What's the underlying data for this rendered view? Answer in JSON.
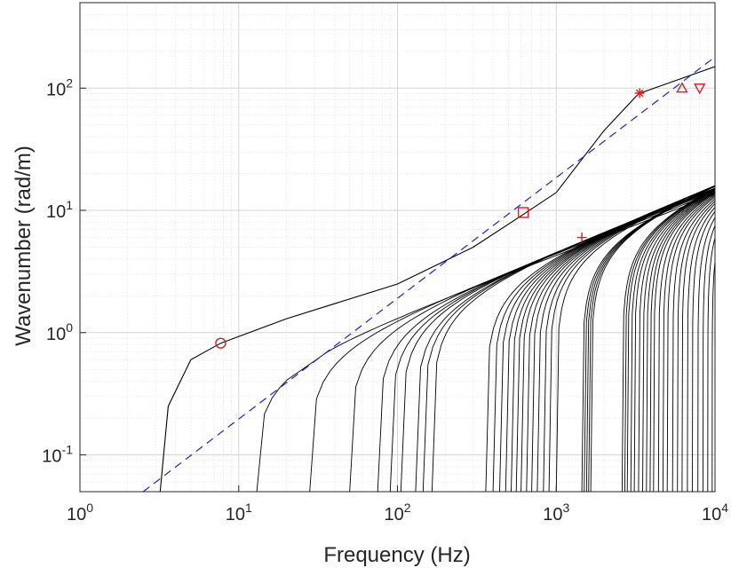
{
  "chart_data": {
    "type": "line",
    "title": "",
    "xlabel": "Frequency (Hz)",
    "ylabel": "Wavenumber (rad/m)",
    "xscale": "log",
    "yscale": "log",
    "xlim": [
      1,
      10000
    ],
    "ylim": [
      0.05,
      500
    ],
    "grid": true,
    "legend": null,
    "x_ticks": [
      {
        "value": 1,
        "base": "10",
        "exp": "0"
      },
      {
        "value": 10,
        "base": "10",
        "exp": "1"
      },
      {
        "value": 100,
        "base": "10",
        "exp": "2"
      },
      {
        "value": 1000,
        "base": "10",
        "exp": "3"
      },
      {
        "value": 10000,
        "base": "10",
        "exp": "4"
      }
    ],
    "y_ticks": [
      {
        "value": 0.1,
        "base": "10",
        "exp": "-1"
      },
      {
        "value": 1,
        "base": "10",
        "exp": "0"
      },
      {
        "value": 10,
        "base": "10",
        "exp": "1"
      },
      {
        "value": 100,
        "base": "10",
        "exp": "2"
      }
    ],
    "reference_line": {
      "name": "dashed reference",
      "color": "#1f1fe0",
      "style": "dashed",
      "x": [
        2.5,
        10000
      ],
      "y": [
        0.05,
        180
      ]
    },
    "dispersion_curves": {
      "color": "#000000",
      "cutoff_frequencies": [
        3.2,
        13,
        28,
        50,
        75,
        90,
        105,
        130,
        145,
        165,
        360,
        400,
        440,
        480,
        520,
        560,
        600,
        650,
        700,
        760,
        830,
        900,
        1000,
        1450,
        1500,
        1550,
        1600,
        1650,
        2600,
        2700,
        2800,
        2950,
        3100,
        3300,
        3500,
        3700,
        3900,
        4100,
        4400,
        4700,
        5000,
        5400,
        5800,
        6200,
        6700,
        7200,
        7800,
        8400,
        9000,
        9600
      ],
      "low_branch_points": [
        {
          "x": 3.2,
          "y": 0.05
        },
        {
          "x": 3.6,
          "y": 0.25
        },
        {
          "x": 5,
          "y": 0.6
        },
        {
          "x": 7.7,
          "y": 0.82
        },
        {
          "x": 20,
          "y": 1.3
        },
        {
          "x": 100,
          "y": 2.5
        },
        {
          "x": 300,
          "y": 5
        },
        {
          "x": 600,
          "y": 9
        },
        {
          "x": 1000,
          "y": 14
        },
        {
          "x": 2000,
          "y": 45
        },
        {
          "x": 3300,
          "y": 90
        },
        {
          "x": 10000,
          "y": 150
        }
      ]
    },
    "markers": [
      {
        "symbol": "circle",
        "x": 7.7,
        "y": 0.82,
        "color": "#e31a1c"
      },
      {
        "symbol": "square",
        "x": 620,
        "y": 9.6,
        "color": "#e31a1c"
      },
      {
        "symbol": "plus",
        "x": 1450,
        "y": 6.0,
        "color": "#e31a1c"
      },
      {
        "symbol": "asterisk",
        "x": 3350,
        "y": 91,
        "color": "#e31a1c"
      },
      {
        "symbol": "triangle-up",
        "x": 6200,
        "y": 100,
        "color": "#e31a1c"
      },
      {
        "symbol": "triangle-down",
        "x": 8000,
        "y": 100,
        "color": "#e31a1c"
      }
    ]
  }
}
